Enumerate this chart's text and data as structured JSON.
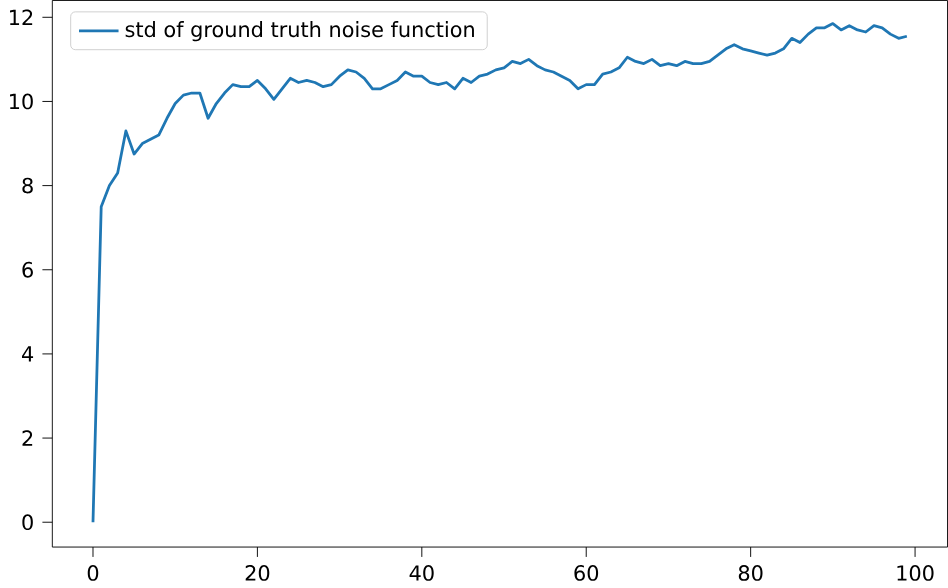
{
  "chart_data": {
    "type": "line",
    "x": [
      0,
      1,
      2,
      3,
      4,
      5,
      6,
      7,
      8,
      9,
      10,
      11,
      12,
      13,
      14,
      15,
      16,
      17,
      18,
      19,
      20,
      21,
      22,
      23,
      24,
      25,
      26,
      27,
      28,
      29,
      30,
      31,
      32,
      33,
      34,
      35,
      36,
      37,
      38,
      39,
      40,
      41,
      42,
      43,
      44,
      45,
      46,
      47,
      48,
      49,
      50,
      51,
      52,
      53,
      54,
      55,
      56,
      57,
      58,
      59,
      60,
      61,
      62,
      63,
      64,
      65,
      66,
      67,
      68,
      69,
      70,
      71,
      72,
      73,
      74,
      75,
      76,
      77,
      78,
      79,
      80,
      81,
      82,
      83,
      84,
      85,
      86,
      87,
      88,
      89,
      90,
      91,
      92,
      93,
      94,
      95,
      96,
      97,
      98,
      99
    ],
    "series": [
      {
        "name": "std of ground truth noise function",
        "color": "#1f77b4",
        "values": [
          0,
          7.5,
          8.0,
          8.3,
          9.3,
          8.75,
          9.0,
          9.1,
          9.2,
          9.6,
          9.95,
          10.15,
          10.2,
          10.2,
          9.6,
          9.95,
          10.2,
          10.4,
          10.35,
          10.35,
          10.5,
          10.3,
          10.05,
          10.3,
          10.55,
          10.45,
          10.5,
          10.45,
          10.35,
          10.4,
          10.6,
          10.75,
          10.7,
          10.55,
          10.3,
          10.3,
          10.4,
          10.5,
          10.7,
          10.6,
          10.6,
          10.45,
          10.4,
          10.45,
          10.3,
          10.55,
          10.45,
          10.6,
          10.65,
          10.75,
          10.8,
          10.95,
          10.9,
          11.0,
          10.85,
          10.75,
          10.7,
          10.6,
          10.5,
          10.3,
          10.4,
          10.4,
          10.65,
          10.7,
          10.8,
          11.05,
          10.95,
          10.9,
          11.0,
          10.85,
          10.9,
          10.85,
          10.95,
          10.9,
          10.9,
          10.95,
          11.1,
          11.25,
          11.35,
          11.25,
          11.2,
          11.15,
          11.1,
          11.15,
          11.25,
          11.5,
          11.4,
          11.6,
          11.75,
          11.75,
          11.85,
          11.7,
          11.8,
          11.7,
          11.65,
          11.8,
          11.75,
          11.6,
          11.5,
          11.55
        ]
      }
    ],
    "xlim": [
      -4.95,
      103.95
    ],
    "ylim": [
      -0.59,
      12.4
    ],
    "xticks": [
      0,
      20,
      40,
      60,
      80,
      100
    ],
    "yticks": [
      0,
      2,
      4,
      6,
      8,
      10,
      12
    ],
    "legend": "top left",
    "grid": false,
    "line_style": "solid",
    "marker": "none"
  }
}
